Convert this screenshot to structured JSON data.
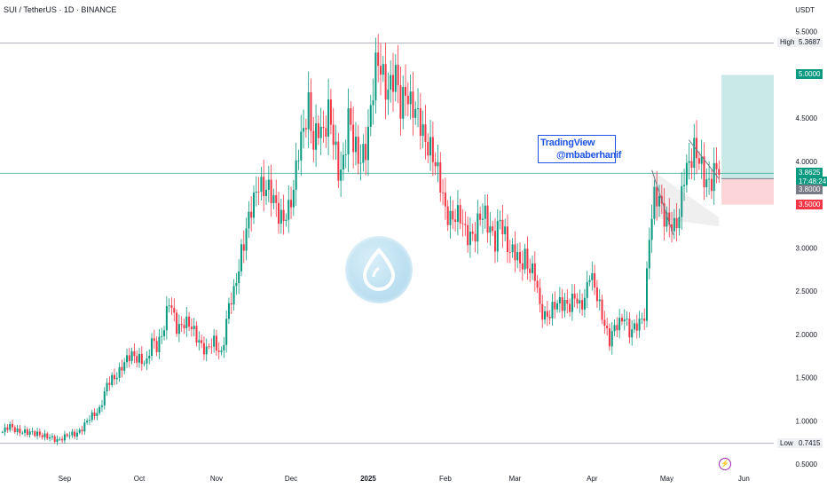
{
  "header": {
    "title": "SUI / TetherUS · 1D · BINANCE",
    "currency": "USDT"
  },
  "watermark": {
    "brand": "TradingView",
    "author": "@mbaberhanif"
  },
  "markers": {
    "high_label": "High",
    "high_value": "5.3687",
    "low_label": "Low",
    "low_value": "0.7415",
    "target_value": "5.0000",
    "last_price": "3.8625",
    "countdown": "17:48:24",
    "entry_value": "3.8000",
    "stop_value": "3.5000"
  },
  "colors": {
    "up": "#089981",
    "down": "#f23645",
    "target_zone": "#b2dfdb",
    "stop_zone": "#f9c7ca",
    "channel": "#787b86",
    "high_low_line": "#b2b5be",
    "price_line": "#089981",
    "logo": "#a9d6ec"
  },
  "icons": {
    "logo": "sui-logo-icon",
    "event": "lightning-bolt-icon"
  },
  "chart_data": {
    "type": "candlestick",
    "title": "SUI / TetherUS · 1D · BINANCE",
    "ylabel": "USDT",
    "ylim": [
      0.45,
      5.62
    ],
    "y_ticks": [
      "0.5000",
      "1.0000",
      "1.5000",
      "2.0000",
      "2.5000",
      "3.0000",
      "3.5000",
      "4.0000",
      "4.5000",
      "5.0000",
      "5.5000"
    ],
    "x_ticks": [
      {
        "label": "Sep",
        "date": "2024-09-01"
      },
      {
        "label": "Oct",
        "date": "2024-10-01"
      },
      {
        "label": "Nov",
        "date": "2024-11-01"
      },
      {
        "label": "Dec",
        "date": "2024-12-01"
      },
      {
        "label": "2025",
        "date": "2025-01-01"
      },
      {
        "label": "Feb",
        "date": "2025-02-01"
      },
      {
        "label": "Mar",
        "date": "2025-03-01"
      },
      {
        "label": "Apr",
        "date": "2025-04-01"
      },
      {
        "label": "May",
        "date": "2025-05-01"
      },
      {
        "label": "Jun",
        "date": "2025-06-01"
      }
    ],
    "x_start": "2024-08-06",
    "x_end": "2025-06-13",
    "close_path": [
      [
        "2024-08-07",
        0.87
      ],
      [
        "2024-08-10",
        0.93
      ],
      [
        "2024-08-13",
        0.9
      ],
      [
        "2024-08-17",
        0.85
      ],
      [
        "2024-08-21",
        0.87
      ],
      [
        "2024-08-25",
        0.8
      ],
      [
        "2024-08-29",
        0.79
      ],
      [
        "2024-09-02",
        0.82
      ],
      [
        "2024-09-05",
        0.85
      ],
      [
        "2024-09-08",
        0.92
      ],
      [
        "2024-09-12",
        1.05
      ],
      [
        "2024-09-15",
        1.15
      ],
      [
        "2024-09-18",
        1.4
      ],
      [
        "2024-09-21",
        1.5
      ],
      [
        "2024-09-24",
        1.65
      ],
      [
        "2024-09-28",
        1.74
      ],
      [
        "2024-10-01",
        1.75
      ],
      [
        "2024-10-04",
        1.65
      ],
      [
        "2024-10-06",
        1.9
      ],
      [
        "2024-10-08",
        1.88
      ],
      [
        "2024-10-11",
        2.1
      ],
      [
        "2024-10-13",
        2.35
      ],
      [
        "2024-10-16",
        2.1
      ],
      [
        "2024-10-19",
        2.15
      ],
      [
        "2024-10-22",
        2.05
      ],
      [
        "2024-10-25",
        1.95
      ],
      [
        "2024-10-28",
        1.8
      ],
      [
        "2024-10-31",
        1.9
      ],
      [
        "2024-11-03",
        1.8
      ],
      [
        "2024-11-06",
        2.3
      ],
      [
        "2024-11-08",
        2.45
      ],
      [
        "2024-11-11",
        3.0
      ],
      [
        "2024-11-13",
        3.2
      ],
      [
        "2024-11-16",
        3.5
      ],
      [
        "2024-11-18",
        3.8
      ],
      [
        "2024-11-21",
        3.7
      ],
      [
        "2024-11-24",
        3.5
      ],
      [
        "2024-11-27",
        3.4
      ],
      [
        "2024-11-30",
        3.4
      ],
      [
        "2024-12-02",
        3.6
      ],
      [
        "2024-12-04",
        4.2
      ],
      [
        "2024-12-06",
        4.45
      ],
      [
        "2024-12-08",
        4.6
      ],
      [
        "2024-12-10",
        4.1
      ],
      [
        "2024-12-12",
        4.45
      ],
      [
        "2024-12-14",
        4.4
      ],
      [
        "2024-12-16",
        4.55
      ],
      [
        "2024-12-18",
        4.2
      ],
      [
        "2024-12-20",
        3.9
      ],
      [
        "2024-12-22",
        4.05
      ],
      [
        "2024-12-24",
        4.5
      ],
      [
        "2024-12-26",
        4.15
      ],
      [
        "2024-12-28",
        4.05
      ],
      [
        "2024-12-31",
        4.2
      ],
      [
        "2025-01-02",
        4.5
      ],
      [
        "2025-01-04",
        5.05
      ],
      [
        "2025-01-06",
        5.2
      ],
      [
        "2025-01-08",
        4.9
      ],
      [
        "2025-01-10",
        4.8
      ],
      [
        "2025-01-12",
        4.95
      ],
      [
        "2025-01-14",
        4.7
      ],
      [
        "2025-01-16",
        4.9
      ],
      [
        "2025-01-18",
        4.6
      ],
      [
        "2025-01-20",
        4.5
      ],
      [
        "2025-01-22",
        4.5
      ],
      [
        "2025-01-24",
        4.3
      ],
      [
        "2025-01-26",
        4.1
      ],
      [
        "2025-01-28",
        3.9
      ],
      [
        "2025-01-30",
        3.8
      ],
      [
        "2025-02-01",
        3.5
      ],
      [
        "2025-02-03",
        3.3
      ],
      [
        "2025-02-05",
        3.3
      ],
      [
        "2025-02-07",
        3.4
      ],
      [
        "2025-02-09",
        3.25
      ],
      [
        "2025-02-11",
        3.1
      ],
      [
        "2025-02-13",
        3.1
      ],
      [
        "2025-02-15",
        3.4
      ],
      [
        "2025-02-17",
        3.45
      ],
      [
        "2025-02-19",
        3.2
      ],
      [
        "2025-02-21",
        3.0
      ],
      [
        "2025-02-23",
        3.35
      ],
      [
        "2025-02-25",
        3.2
      ],
      [
        "2025-02-27",
        2.95
      ],
      [
        "2025-03-01",
        2.9
      ],
      [
        "2025-03-03",
        2.8
      ],
      [
        "2025-03-05",
        2.95
      ],
      [
        "2025-03-07",
        2.75
      ],
      [
        "2025-03-09",
        2.65
      ],
      [
        "2025-03-11",
        2.3
      ],
      [
        "2025-03-13",
        2.25
      ],
      [
        "2025-03-15",
        2.25
      ],
      [
        "2025-03-17",
        2.3
      ],
      [
        "2025-03-19",
        2.35
      ],
      [
        "2025-03-21",
        2.4
      ],
      [
        "2025-03-23",
        2.35
      ],
      [
        "2025-03-25",
        2.4
      ],
      [
        "2025-03-27",
        2.3
      ],
      [
        "2025-03-29",
        2.45
      ],
      [
        "2025-03-31",
        2.75
      ],
      [
        "2025-04-02",
        2.5
      ],
      [
        "2025-04-04",
        2.3
      ],
      [
        "2025-04-06",
        2.15
      ],
      [
        "2025-04-08",
        1.95
      ],
      [
        "2025-04-10",
        2.05
      ],
      [
        "2025-04-12",
        2.1
      ],
      [
        "2025-04-14",
        2.25
      ],
      [
        "2025-04-16",
        2.05
      ],
      [
        "2025-04-18",
        2.05
      ],
      [
        "2025-04-20",
        2.1
      ],
      [
        "2025-04-22",
        2.25
      ],
      [
        "2025-04-24",
        3.2
      ],
      [
        "2025-04-26",
        3.55
      ],
      [
        "2025-04-28",
        3.5
      ],
      [
        "2025-04-30",
        3.4
      ],
      [
        "2025-05-02",
        3.35
      ],
      [
        "2025-05-04",
        3.2
      ],
      [
        "2025-05-06",
        3.3
      ],
      [
        "2025-05-08",
        3.9
      ],
      [
        "2025-05-10",
        4.05
      ],
      [
        "2025-05-12",
        4.1
      ],
      [
        "2025-05-14",
        3.95
      ],
      [
        "2025-05-16",
        3.85
      ],
      [
        "2025-05-18",
        3.8
      ],
      [
        "2025-05-20",
        3.85
      ],
      [
        "2025-05-22",
        3.86
      ]
    ],
    "high": {
      "label": "High",
      "value": 5.3687,
      "date": "2025-01-05"
    },
    "low": {
      "label": "Low",
      "value": 0.7415
    },
    "last_price": 3.8625,
    "countdown": "17:48:24",
    "trade_setup": {
      "entry": 3.8,
      "target": 5.0,
      "stop": 3.5,
      "from": "2025-05-23",
      "to": "2025-06-13"
    },
    "channel": {
      "from": "2025-04-25",
      "to": "2025-05-22",
      "upper": [
        3.9,
        4.25
      ],
      "lower": [
        3.1,
        3.45
      ]
    },
    "grid": false
  }
}
